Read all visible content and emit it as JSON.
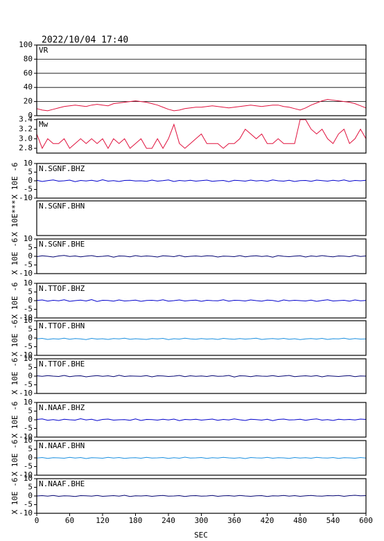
{
  "chart_data": {
    "type": "line",
    "title": "2022/10/04 17:40",
    "xlabel": "SEC",
    "x": [
      0,
      10,
      20,
      30,
      40,
      50,
      60,
      70,
      80,
      90,
      100,
      110,
      120,
      130,
      140,
      150,
      160,
      170,
      180,
      190,
      200,
      210,
      220,
      230,
      240,
      250,
      260,
      270,
      280,
      290,
      300,
      310,
      320,
      330,
      340,
      350,
      360,
      370,
      380,
      390,
      400,
      410,
      420,
      430,
      440,
      450,
      460,
      470,
      480,
      490,
      500,
      510,
      520,
      530,
      540,
      550,
      560,
      570,
      580,
      590,
      600
    ],
    "xlim": [
      0,
      600
    ],
    "xticks": [
      0,
      60,
      120,
      180,
      240,
      300,
      360,
      420,
      480,
      540,
      600
    ],
    "panels": [
      {
        "name": "VR",
        "ylim": [
          0,
          100
        ],
        "yticks": [
          0,
          20,
          40,
          60,
          80,
          100
        ],
        "grid": true,
        "series": [
          {
            "color": "#e0103c",
            "values": [
              10,
              8,
              7,
              9,
              11,
              13,
              14,
              15,
              14,
              13,
              15,
              16,
              15,
              14,
              17,
              18,
              19,
              20,
              21,
              20,
              19,
              17,
              15,
              12,
              9,
              7,
              8,
              10,
              11,
              12,
              12,
              13,
              14,
              13,
              12,
              11,
              12,
              13,
              14,
              15,
              14,
              13,
              14,
              15,
              15,
              13,
              12,
              10,
              8,
              11,
              15,
              18,
              21,
              23,
              22,
              21,
              20,
              19,
              17,
              14,
              11
            ]
          }
        ]
      },
      {
        "name": "Mw",
        "ylim": [
          2.7,
          3.41
        ],
        "yticks": [
          2.8,
          {
            "value": 3,
            "label": "3.0"
          },
          3.2,
          3.4
        ],
        "grid": false,
        "series": [
          {
            "color": "#e0103c",
            "values": [
              3.1,
              2.8,
              3.0,
              2.9,
              2.9,
              3.0,
              2.8,
              2.9,
              3.0,
              2.9,
              3.0,
              2.9,
              3.0,
              2.8,
              3.0,
              2.9,
              3.0,
              2.8,
              2.9,
              3.0,
              2.8,
              2.8,
              3.0,
              2.8,
              3.0,
              3.3,
              2.9,
              2.8,
              2.9,
              3.0,
              3.1,
              2.9,
              2.9,
              2.9,
              2.8,
              2.9,
              2.9,
              3.0,
              3.2,
              3.1,
              3.0,
              3.1,
              2.9,
              2.9,
              3.0,
              2.9,
              2.9,
              2.9,
              3.4,
              3.4,
              3.2,
              3.1,
              3.2,
              3.0,
              2.9,
              3.1,
              3.2,
              2.9,
              3.0,
              3.2,
              3.0
            ]
          }
        ]
      },
      {
        "name": "N.SGNF.BHZ",
        "ylabel": "X 10E -6",
        "ylim": [
          -10,
          10
        ],
        "yticks": [
          -10,
          -5,
          0,
          5,
          10
        ],
        "series": [
          {
            "color": "#0000cc",
            "values": [
              0.3,
              -0.4,
              0.1,
              0.5,
              -0.2,
              0,
              0.4,
              -0.5,
              0.2,
              -0.1,
              0.3,
              -0.3,
              0.6,
              -0.2,
              0.1,
              -0.4,
              0.2,
              0.3,
              -0.1,
              0,
              -0.3,
              0.4,
              -0.2,
              0.1,
              0.5,
              -0.4,
              0.2,
              -0.1,
              0.3,
              -0.2,
              0.1,
              0.4,
              -0.3,
              0,
              0.2,
              -0.5,
              0.3,
              0.1,
              -0.2,
              0.4,
              -0.1,
              0.2,
              -0.3,
              0.5,
              0,
              -0.2,
              0.3,
              -0.4,
              0.1,
              0.2,
              -0.3,
              0.4,
              0.1,
              -0.2,
              0.3,
              -0.1,
              0.5,
              -0.3,
              0.2,
              0,
              0.3
            ]
          }
        ]
      },
      {
        "name": "N.SGNF.BHN",
        "ylabel": "X 10E***"
      },
      {
        "name": "N.SGNF.BHE",
        "ylabel": "X 10E -6",
        "ylim": [
          -10,
          10
        ],
        "yticks": [
          -10,
          -5,
          0,
          5,
          10
        ],
        "series": [
          {
            "color": "#000070",
            "values": [
              -0.2,
              0.3,
              0,
              -0.4,
              0.2,
              0.5,
              -0.1,
              0.2,
              -0.3,
              0.1,
              0.4,
              -0.2,
              0,
              0.3,
              -0.5,
              0.2,
              0.1,
              -0.3,
              0.4,
              -0.1,
              0.2,
              0,
              -0.4,
              0.3,
              0.1,
              -0.2,
              0.5,
              -0.3,
              0,
              0.2,
              -0.1,
              0.3,
              0.2,
              -0.4,
              0.1,
              0,
              -0.2,
              0.4,
              -0.3,
              0.1,
              0.3,
              -0.1,
              0.2,
              -0.5,
              0.4,
              0,
              -0.2,
              0.1,
              0.3,
              -0.4,
              0.2,
              -0.1,
              0.4,
              0,
              -0.3,
              0.2,
              0.1,
              -0.2,
              0.5,
              -0.1,
              0.2
            ]
          }
        ]
      },
      {
        "name": "N.TTOF.BHZ",
        "ylabel": "X 10E -6",
        "ylim": [
          -10,
          10
        ],
        "yticks": [
          -10,
          -5,
          0,
          5,
          10
        ],
        "series": [
          {
            "color": "#0000cc",
            "values": [
              0.1,
              0.4,
              -0.3,
              0.2,
              -0.1,
              0.5,
              -0.4,
              0,
              0.3,
              -0.2,
              0.6,
              -0.5,
              0.2,
              0.1,
              -0.3,
              0.4,
              -0.2,
              0,
              0.3,
              -0.4,
              0.1,
              0.2,
              -0.1,
              0.5,
              -0.3,
              0,
              0.4,
              -0.2,
              0.1,
              0.3,
              -0.4,
              0.2,
              0,
              -0.1,
              0.5,
              -0.3,
              0.2,
              0.1,
              -0.2,
              0.4,
              0,
              -0.3,
              0.3,
              0.1,
              -0.5,
              0.4,
              -0.1,
              0.2,
              0,
              -0.2,
              0.3,
              -0.4,
              0.1,
              0.5,
              -0.2,
              0,
              0.2,
              -0.3,
              0.4,
              -0.1,
              0.1
            ]
          }
        ]
      },
      {
        "name": "N.TTOF.BHN",
        "ylabel": "X 10E -6",
        "ylim": [
          -10,
          10
        ],
        "yticks": [
          -10,
          -5,
          0,
          5,
          10
        ],
        "series": [
          {
            "color": "#1a8fe0",
            "values": [
              -0.5,
              -0.2,
              -0.8,
              -0.4,
              -0.6,
              -0.1,
              -0.7,
              -0.3,
              -0.5,
              -0.9,
              -0.2,
              -0.6,
              -0.4,
              -0.8,
              -0.3,
              -0.5,
              -0.1,
              -0.7,
              -0.4,
              -0.6,
              -0.8,
              -0.3,
              -0.5,
              -0.2,
              -0.9,
              -0.4,
              -0.6,
              -0.1,
              -0.5,
              -0.7,
              -0.3,
              -0.6,
              -0.4,
              -0.8,
              -0.2,
              -0.5,
              -0.7,
              -0.3,
              -0.6,
              -0.4,
              -0.1,
              -0.8,
              -0.5,
              -0.3,
              -0.6,
              -0.2,
              -0.7,
              -0.4,
              -0.9,
              -0.5,
              -0.3,
              -0.6,
              -0.2,
              -0.8,
              -0.4,
              -0.5,
              -0.1,
              -0.7,
              -0.3,
              -0.6,
              -0.5
            ]
          }
        ]
      },
      {
        "name": "N.TTOF.BHE",
        "ylabel": "X 10E -6",
        "ylim": [
          -10,
          10
        ],
        "yticks": [
          -10,
          -5,
          0,
          5,
          10
        ],
        "series": [
          {
            "color": "#000070",
            "values": [
              0.2,
              -0.1,
              0.3,
              0,
              -0.2,
              0.4,
              -0.3,
              0.1,
              0.2,
              -0.4,
              0,
              0.3,
              -0.1,
              0.2,
              -0.3,
              0.5,
              -0.2,
              0.1,
              0,
              -0.1,
              0.3,
              -0.4,
              0.2,
              0.1,
              -0.2,
              0,
              0.4,
              -0.3,
              0.2,
              -0.1,
              0.1,
              -0.2,
              0.3,
              -0.1,
              0,
              0.4,
              -0.5,
              0.2,
              0.1,
              -0.3,
              0.2,
              0,
              -0.1,
              0.3,
              -0.2,
              0.1,
              0.4,
              -0.3,
              0,
              0.2,
              -0.1,
              0.3,
              -0.4,
              0.2,
              0,
              -0.2,
              0.1,
              0.3,
              -0.3,
              0.1,
              0
            ]
          }
        ]
      },
      {
        "name": "N.NAAF.BHZ",
        "ylabel": "X 10E -6",
        "ylim": [
          -10,
          10
        ],
        "yticks": [
          -10,
          -5,
          0,
          5,
          10
        ],
        "series": [
          {
            "color": "#0000cc",
            "values": [
              0.2,
              0.5,
              -0.3,
              0.1,
              -0.4,
              0.3,
              0,
              -0.2,
              0.6,
              -0.1,
              0.3,
              -0.5,
              0.2,
              0.4,
              -0.2,
              0,
              0.1,
              -0.3,
              0.5,
              -0.4,
              0.2,
              0.1,
              -0.2,
              0.3,
              -0.1,
              0.4,
              -0.5,
              0.2,
              0,
              0.3,
              -0.2,
              0.1,
              0.4,
              -0.3,
              0.2,
              -0.1,
              0.5,
              0,
              -0.4,
              0.3,
              0.1,
              -0.2,
              0.3,
              -0.5,
              0.2,
              0.4,
              -0.1,
              0,
              0.3,
              -0.3,
              0.2,
              0.5,
              -0.2,
              0.1,
              -0.4,
              0.3,
              0,
              0.2,
              -0.1,
              0.4,
              0.2
            ]
          }
        ]
      },
      {
        "name": "N.NAAF.BHN",
        "ylabel": "X 10E -6",
        "ylim": [
          -10,
          10
        ],
        "yticks": [
          -10,
          -5,
          0,
          5,
          10
        ],
        "series": [
          {
            "color": "#1a8fe0",
            "values": [
              -0.1,
              0.2,
              -0.3,
              0.1,
              0,
              -0.2,
              0.3,
              -0.1,
              0.2,
              -0.4,
              0.1,
              0,
              -0.2,
              0.3,
              -0.1,
              0.2,
              -0.3,
              0,
              0.1,
              -0.2,
              0.3,
              -0.1,
              0,
              0.2,
              -0.3,
              0.1,
              -0.2,
              0.4,
              -0.1,
              0,
              0.2,
              -0.3,
              0.1,
              -0.1,
              0.3,
              0,
              -0.2,
              0.1,
              -0.4,
              0.2,
              0,
              -0.1,
              0.3,
              -0.2,
              0.1,
              0,
              -0.3,
              0.2,
              -0.1,
              0.1,
              -0.2,
              0.3,
              0,
              -0.1,
              0.2,
              -0.3,
              0.1,
              0,
              -0.2,
              0.2,
              -0.1
            ]
          }
        ]
      },
      {
        "name": "N.NAAF.BHE",
        "ylabel": "X 10E -6",
        "ylim": [
          -10,
          10
        ],
        "yticks": [
          -10,
          -5,
          0,
          5,
          10
        ],
        "series": [
          {
            "color": "#000070",
            "values": [
              0,
              0.2,
              -0.1,
              0.3,
              -0.2,
              0.1,
              0,
              -0.3,
              0.2,
              0.1,
              -0.1,
              0.3,
              -0.2,
              0,
              0.2,
              -0.1,
              0.4,
              -0.3,
              0.1,
              0,
              0.2,
              -0.2,
              0.1,
              0.3,
              -0.1,
              0,
              0.2,
              -0.3,
              0.1,
              0.2,
              -0.1,
              0,
              0.3,
              -0.2,
              0.1,
              0.2,
              -0.1,
              0.3,
              0,
              -0.2,
              0.1,
              0.2,
              -0.3,
              0.1,
              0,
              0.3,
              -0.1,
              0.2,
              -0.2,
              0.1,
              0.3,
              0,
              -0.1,
              0.2,
              0.1,
              0.3,
              -0.2,
              0.2,
              0.4,
              0.1,
              0.2
            ]
          }
        ]
      }
    ]
  }
}
